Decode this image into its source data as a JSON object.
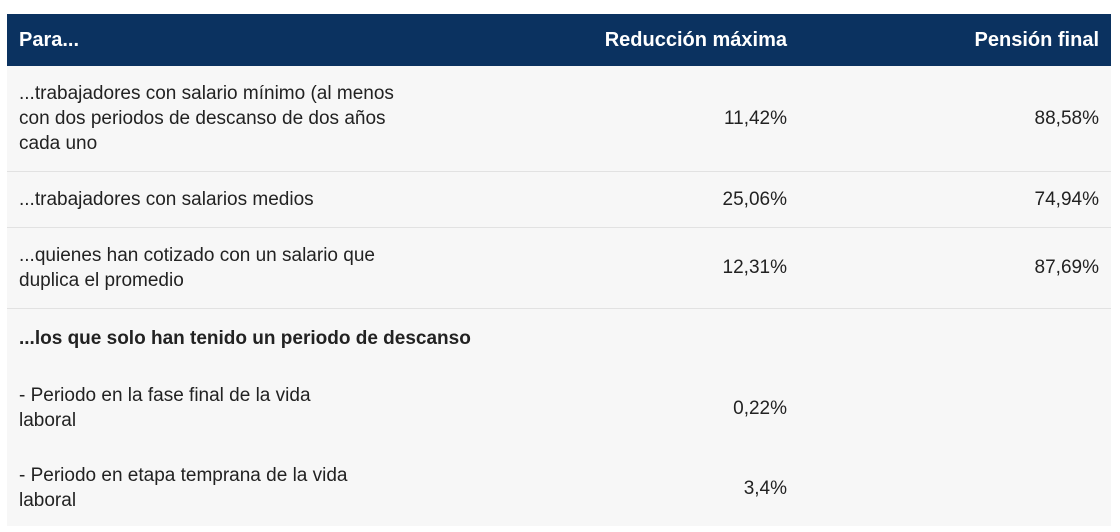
{
  "table": {
    "headers": {
      "col1": "Para...",
      "col2": "Reducción máxima",
      "col3": "Pensión final"
    },
    "rows": [
      {
        "label": "...trabajadores con salario mínimo (al menos con dos periodos de descanso de dos años cada uno",
        "reduction": "11,42%",
        "final": "88,58%"
      },
      {
        "label": "...trabajadores con salarios medios",
        "reduction": "25,06%",
        "final": "74,94%"
      },
      {
        "label": "...quienes han cotizado con un salario que duplica el promedio",
        "reduction": "12,31%",
        "final": "87,69%"
      }
    ],
    "section": {
      "title": "...los que solo han tenido un periodo de descanso",
      "rows": [
        {
          "label": "- Periodo en la fase final de la vida laboral",
          "reduction": "0,22%",
          "final": ""
        },
        {
          "label": "- Periodo en etapa temprana de la vida laboral",
          "reduction": "3,4%",
          "final": ""
        }
      ]
    }
  }
}
